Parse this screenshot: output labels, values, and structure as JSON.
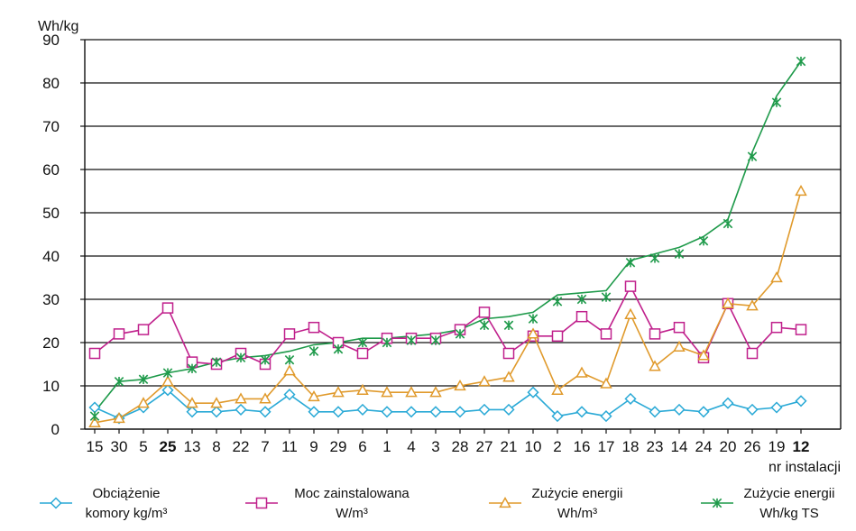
{
  "chart_data": {
    "type": "line",
    "ylabel": "Wh/kg",
    "xlabel": "nr instalacji",
    "ylim": [
      0,
      90
    ],
    "yticks": [
      0,
      10,
      20,
      30,
      40,
      50,
      60,
      70,
      80,
      90
    ],
    "grid": "horizontal",
    "legend_position": "bottom",
    "categories": [
      "15",
      "30",
      "5",
      "25",
      "13",
      "8",
      "22",
      "7",
      "11",
      "9",
      "29",
      "6",
      "1",
      "4",
      "3",
      "28",
      "27",
      "21",
      "10",
      "2",
      "16",
      "17",
      "18",
      "23",
      "14",
      "24",
      "20",
      "26",
      "19",
      "12"
    ],
    "bold_categories": [
      "25",
      "12"
    ],
    "series": [
      {
        "name": "Obciążenie komory kg/m³",
        "legend_lines": [
          "Obciążenie",
          "komory kg/m³"
        ],
        "color": "#29a9d6",
        "marker": "diamond",
        "values": [
          5,
          2.5,
          5,
          9,
          4,
          4,
          4.5,
          4,
          8,
          4,
          4,
          4.5,
          4,
          4,
          4,
          4,
          4.5,
          4.5,
          8.5,
          3,
          4,
          3,
          7,
          4,
          4.5,
          4,
          6,
          4.5,
          5,
          6.5
        ]
      },
      {
        "name": "Moc zainstalowana W/m³",
        "legend_lines": [
          "Moc zainstalowana",
          "W/m³"
        ],
        "color": "#c0208c",
        "marker": "square",
        "values": [
          17.5,
          22,
          23,
          28,
          15.5,
          15,
          17.5,
          15,
          22,
          23.5,
          20,
          17.5,
          21,
          21,
          21,
          23,
          27,
          17.5,
          21.5,
          21.5,
          26,
          22,
          33,
          22,
          23.5,
          16.5,
          29,
          17.5,
          23.5,
          23
        ]
      },
      {
        "name": "Zużycie energii Wh/m³",
        "legend_lines": [
          "Zużycie energii",
          "Wh/m³"
        ],
        "color": "#e09a2c",
        "marker": "triangle",
        "values": [
          1.5,
          2.5,
          6,
          11,
          6,
          6,
          7,
          7,
          13.5,
          7.5,
          8.5,
          9,
          8.5,
          8.5,
          8.5,
          10,
          11,
          12,
          22,
          9,
          13,
          10.5,
          26.5,
          14.5,
          19,
          17,
          29,
          28.5,
          35,
          55
        ]
      },
      {
        "name": "Zużycie energii Wh/kg TS",
        "legend_lines": [
          "Zużycie energii",
          "Wh/kg TS"
        ],
        "color": "#1e9a4a",
        "marker": "star",
        "values": [
          3,
          11,
          11.5,
          13,
          14,
          15.5,
          16.5,
          16,
          16,
          18,
          18.5,
          20,
          20,
          20.5,
          20.5,
          22,
          24,
          24,
          25.5,
          29.5,
          30,
          30.5,
          38.5,
          39.5,
          40.5,
          43.5,
          47.5,
          63,
          75.5,
          85
        ]
      }
    ],
    "trend_line": {
      "color": "#1e9a4a",
      "values": [
        4,
        11,
        11.5,
        13,
        14,
        15.5,
        16.5,
        17,
        18,
        19.5,
        20,
        21,
        21,
        21.5,
        22,
        23,
        25.5,
        26,
        27,
        31,
        31.5,
        32,
        39,
        40.5,
        42,
        44.5,
        48.5,
        64,
        77,
        85
      ]
    }
  }
}
